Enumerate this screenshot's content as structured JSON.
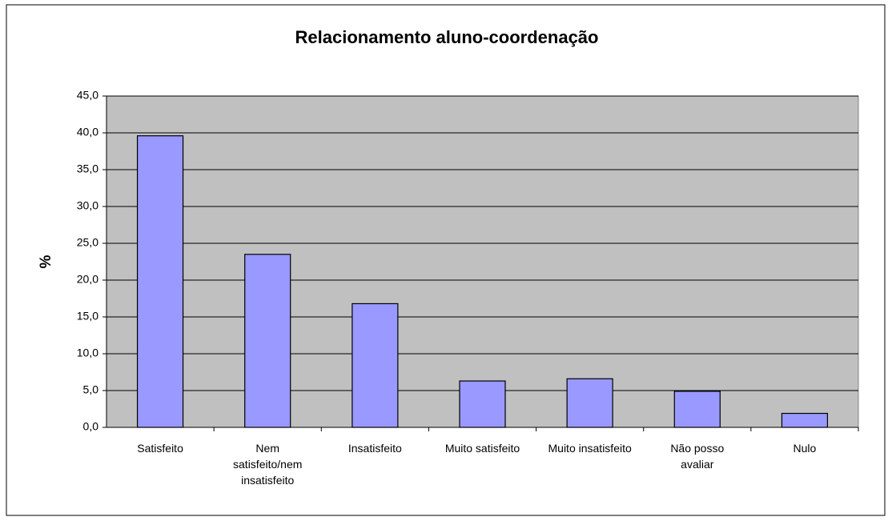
{
  "chart_data": {
    "type": "bar",
    "title": "Relacionamento aluno-coordenação",
    "y_label": "%",
    "categories": [
      "Satisfeito",
      "Nem satisfeito/nem insatisfeito",
      "Insatisfeito",
      "Muito satisfeito",
      "Muito insatisfeito",
      "Não posso avaliar",
      "Nulo"
    ],
    "values": [
      39.6,
      23.5,
      16.8,
      6.3,
      6.6,
      4.9,
      1.9
    ],
    "color": "#9999ff",
    "ylim": [
      0,
      45
    ],
    "yticks": [
      {
        "value": 0,
        "label": "0,0"
      },
      {
        "value": 5,
        "label": "5,0"
      },
      {
        "value": 10,
        "label": "10,0"
      },
      {
        "value": 15,
        "label": "15,0"
      },
      {
        "value": 20,
        "label": "20,0"
      },
      {
        "value": 25,
        "label": "25,0"
      },
      {
        "value": 30,
        "label": "30,0"
      },
      {
        "value": 35,
        "label": "35,0"
      },
      {
        "value": 40,
        "label": "40,0"
      },
      {
        "value": 45,
        "label": "45,0"
      }
    ],
    "grid": true
  }
}
